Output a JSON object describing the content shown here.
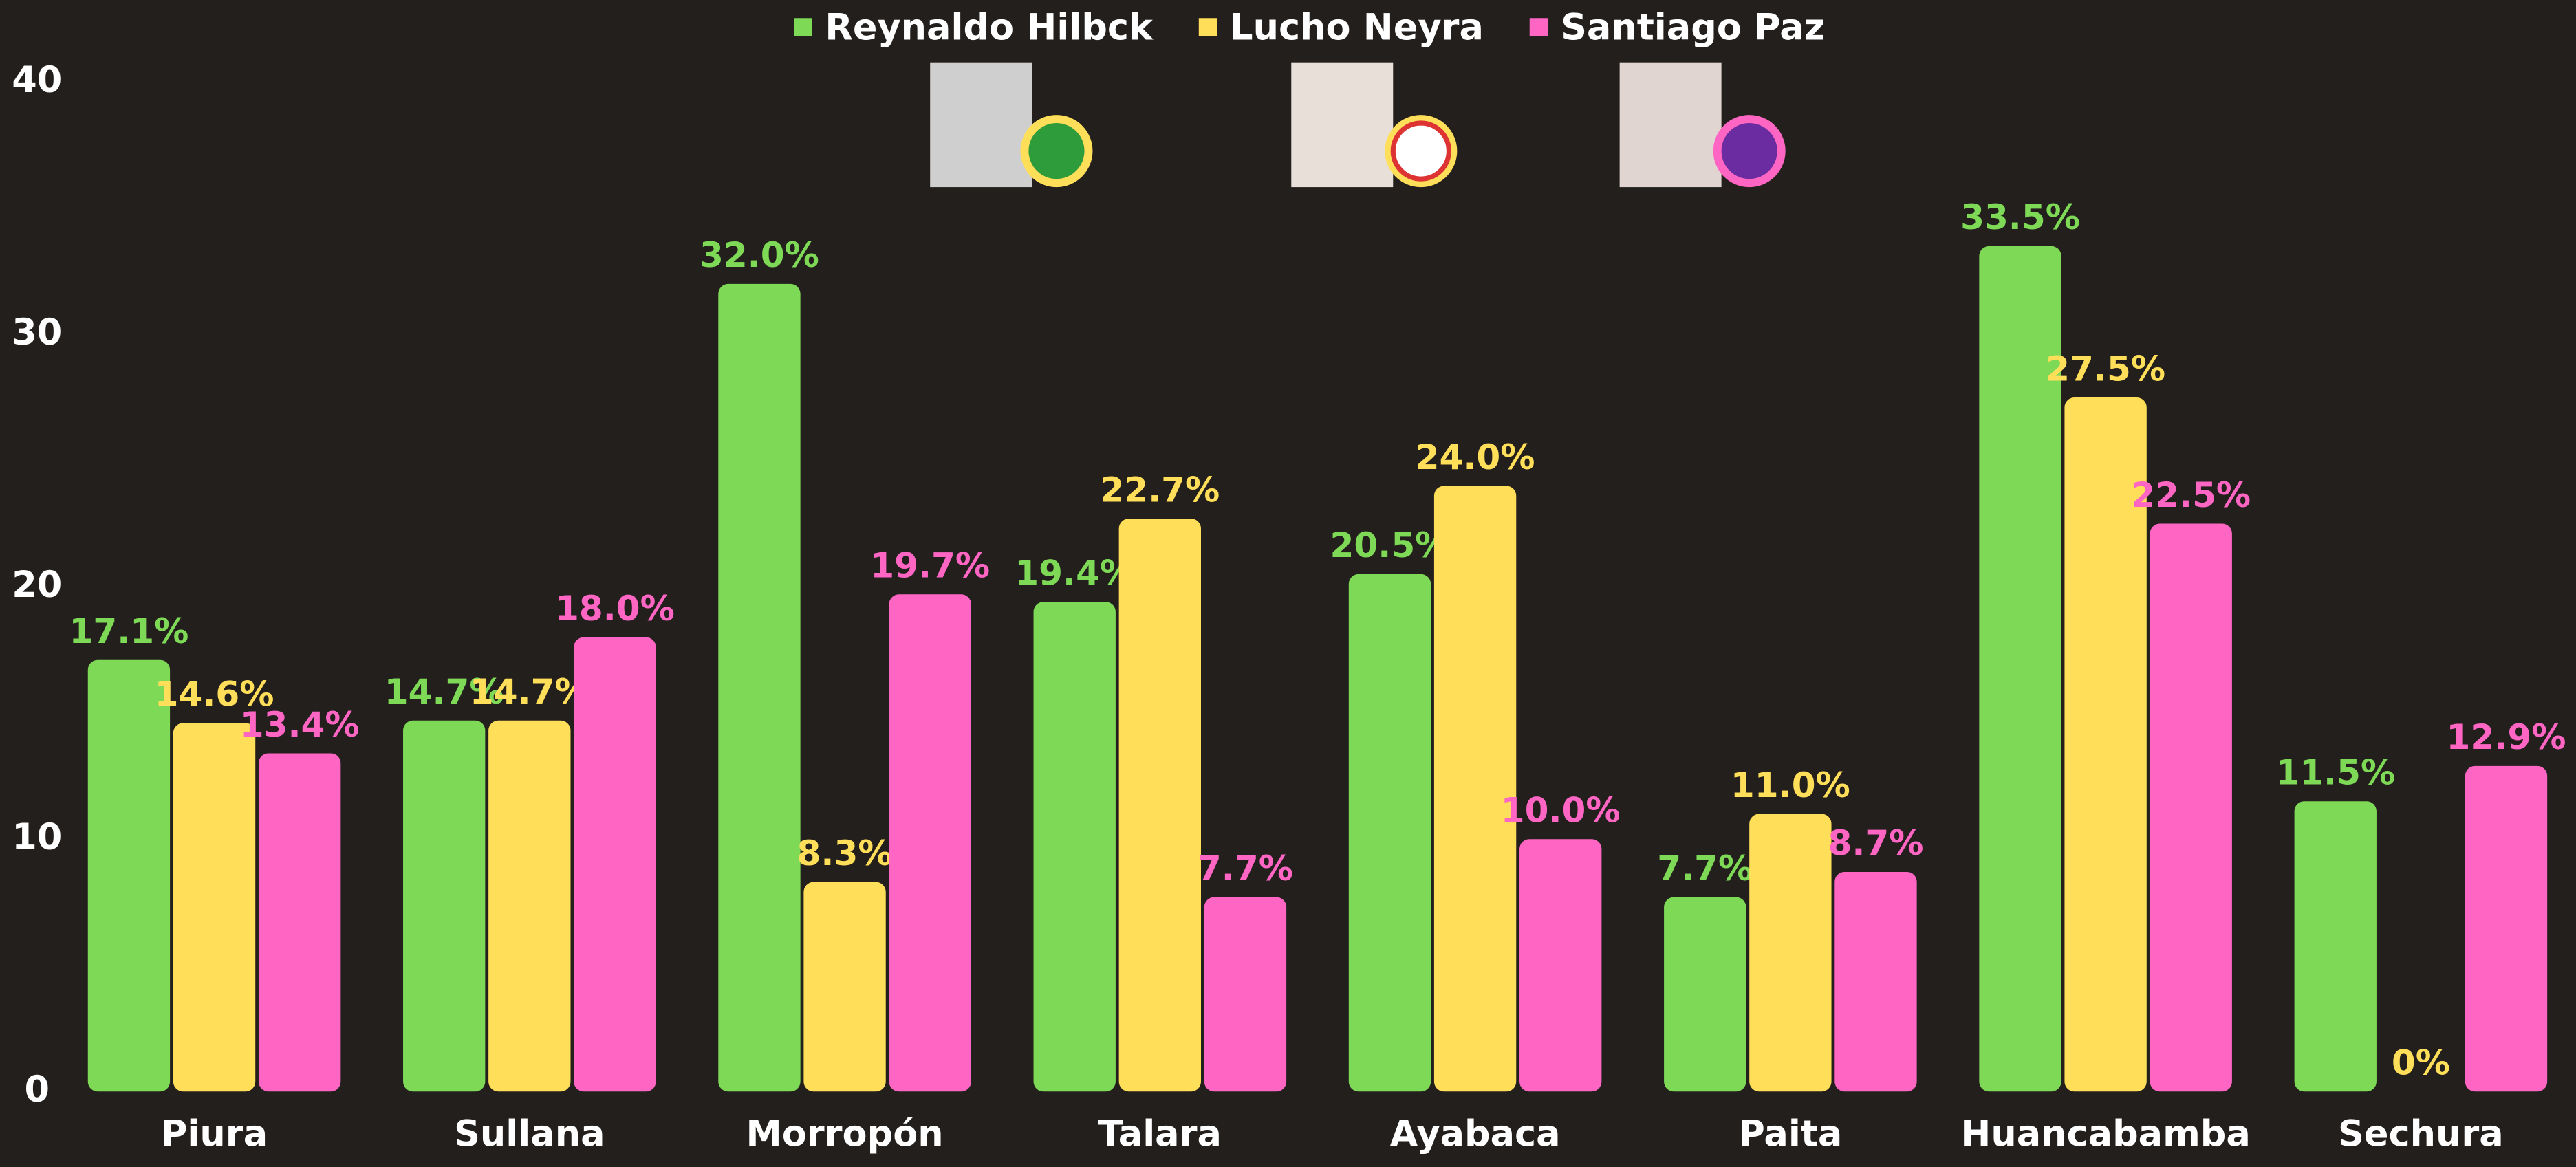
{
  "chart_data": {
    "type": "bar",
    "categories": [
      "Piura",
      "Sullana",
      "Morropón",
      "Talara",
      "Ayabaca",
      "Paita",
      "Huancabamba",
      "Sechura"
    ],
    "series": [
      {
        "name": "Reynaldo Hilbck",
        "color": "#7ed957",
        "values": [
          17.1,
          14.7,
          32.0,
          19.4,
          20.5,
          7.7,
          33.5,
          11.5
        ],
        "value_labels": [
          "17.1%",
          "14.7%",
          "32.0%",
          "19.4%",
          "20.5%",
          "7.7%",
          "33.5%",
          "11.5%"
        ]
      },
      {
        "name": "Lucho Neyra",
        "color": "#ffde59",
        "values": [
          14.6,
          14.7,
          8.3,
          22.7,
          24.0,
          11.0,
          27.5,
          0
        ],
        "value_labels": [
          "14.6%",
          "14.7%",
          "8.3%",
          "22.7%",
          "24.0%",
          "11.0%",
          "27.5%",
          "0%"
        ]
      },
      {
        "name": "Santiago Paz",
        "color": "#ff66c4",
        "values": [
          13.4,
          18.0,
          19.7,
          7.7,
          10.0,
          8.7,
          22.5,
          12.9
        ],
        "value_labels": [
          "13.4%",
          "18.0%",
          "19.7%",
          "7.7%",
          "10.0%",
          "8.7%",
          "22.5%",
          "12.9%"
        ]
      }
    ],
    "ylim": [
      0,
      40
    ],
    "yticks": [
      0,
      10,
      20,
      30,
      40
    ],
    "grid": false,
    "legend": "top"
  }
}
